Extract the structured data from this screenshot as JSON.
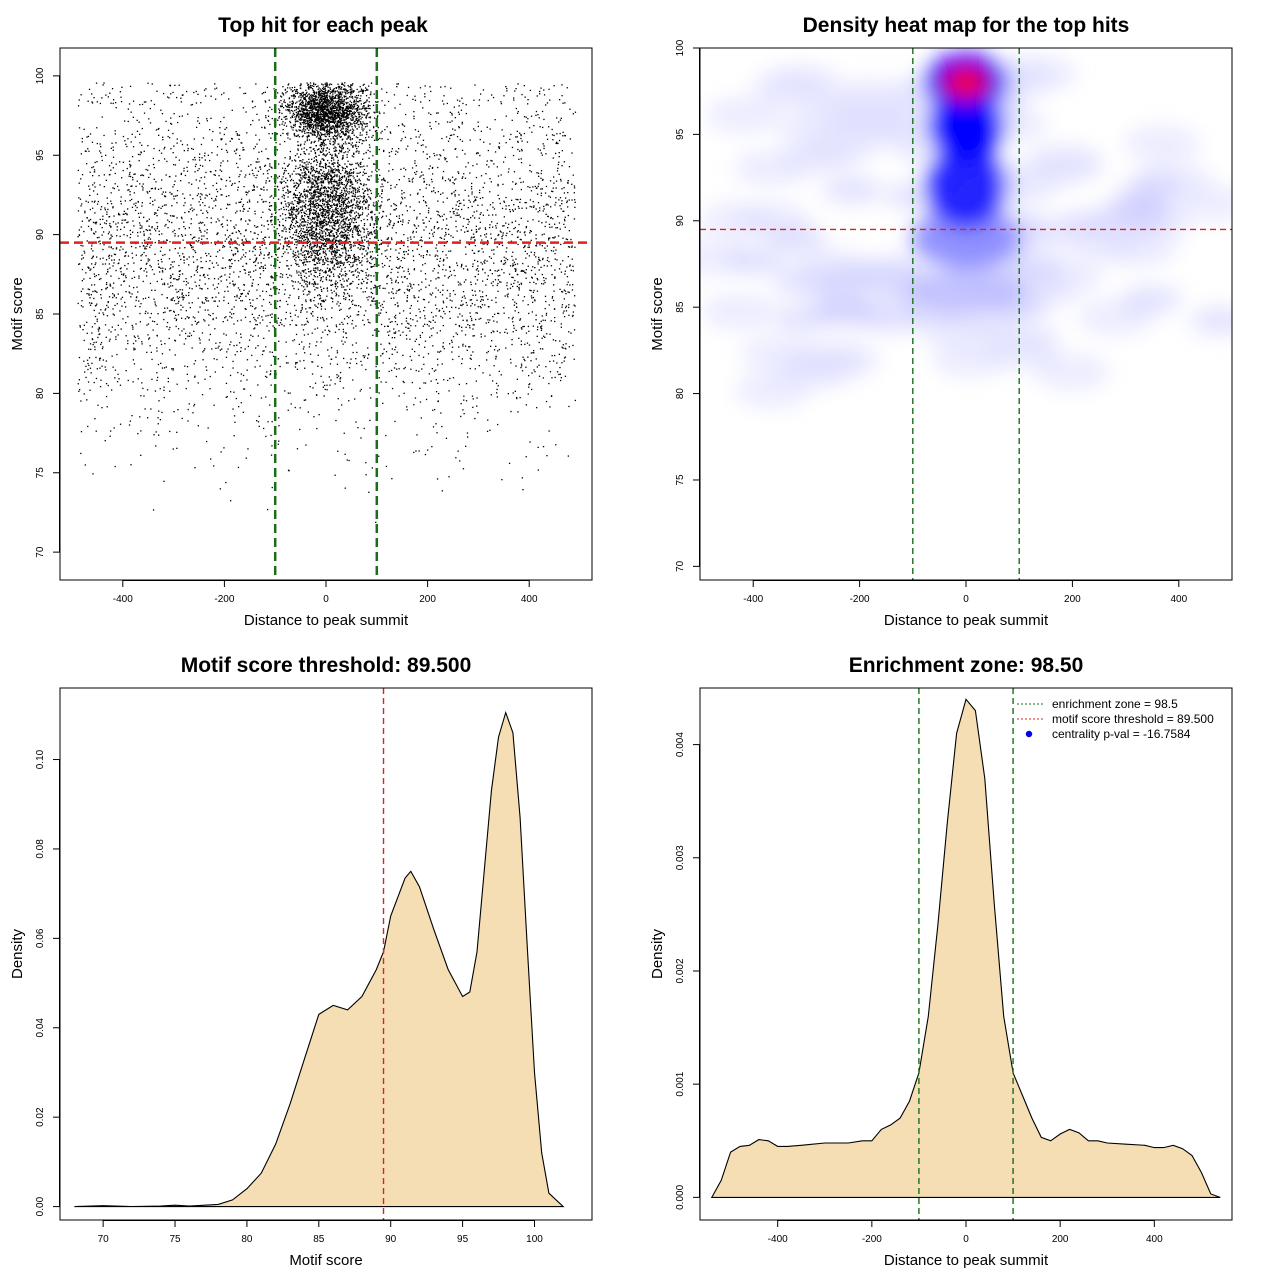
{
  "colors": {
    "enrichment_line": "#1a6e1a",
    "threshold_line": "#dd2222",
    "density_fill": "#f5deb3",
    "heat_low": "#ffffff",
    "heat_mid": "#0000ff",
    "heat_high": "#ff0000",
    "points": "#000000"
  },
  "chart_data": [
    {
      "type": "scatter",
      "title": "Top hit for each peak",
      "xlabel": "Distance to peak summit",
      "ylabel": "Motif score",
      "xlim": [
        -500,
        500
      ],
      "ylim": [
        69,
        101
      ],
      "xticks": [
        -400,
        -200,
        0,
        200,
        400
      ],
      "yticks": [
        70,
        75,
        80,
        85,
        90,
        95,
        100
      ],
      "enrichment_zone_x": [
        -100,
        100
      ],
      "threshold_y": 89.5,
      "n_points_approx": 9000,
      "point_clusters": [
        {
          "name": "background",
          "x_range": [
            -490,
            490
          ],
          "y_center": 89,
          "y_sd": 5.5,
          "share": 0.55
        },
        {
          "name": "central high",
          "x_center": 0,
          "x_sd": 40,
          "y_center": 97.8,
          "y_sd": 0.9,
          "share": 0.2
        },
        {
          "name": "central mid",
          "x_center": 0,
          "x_sd": 45,
          "y_center": 91.5,
          "y_sd": 2.4,
          "share": 0.25
        }
      ]
    },
    {
      "type": "heatmap",
      "title": "Density heat map for the top hits",
      "xlabel": "Distance to peak summit",
      "ylabel": "Motif score",
      "xlim": [
        -500,
        500
      ],
      "ylim": [
        69.5,
        100
      ],
      "xticks": [
        -400,
        -200,
        0,
        200,
        400
      ],
      "yticks": [
        70,
        75,
        80,
        85,
        90,
        95,
        100
      ],
      "enrichment_zone_x": [
        -100,
        100
      ],
      "threshold_y": 89.5,
      "peak_location": {
        "x": 0,
        "y": 98
      }
    },
    {
      "type": "area",
      "title": "Motif score threshold: 89.500",
      "xlabel": "Motif score",
      "ylabel": "Density",
      "xlim": [
        67,
        104
      ],
      "ylim": [
        -0.003,
        0.116
      ],
      "xticks": [
        70,
        75,
        80,
        85,
        90,
        95,
        100
      ],
      "yticks": [
        0.0,
        0.02,
        0.04,
        0.06,
        0.08,
        0.1
      ],
      "ytick_labels": [
        "0.00",
        "0.02",
        "0.04",
        "0.06",
        "0.08",
        "0.10"
      ],
      "threshold_x": 89.5,
      "x": [
        68,
        70,
        72,
        74,
        75,
        76,
        78,
        79,
        80,
        81,
        82,
        83,
        84,
        85,
        86,
        87,
        88,
        89,
        89.5,
        90,
        91,
        91.4,
        92,
        93,
        94,
        95,
        95.5,
        96,
        96.5,
        97,
        97.5,
        98,
        98.5,
        99,
        99.5,
        100,
        100.5,
        101,
        102
      ],
      "y": [
        0,
        0.0002,
        0,
        0.0001,
        0.0003,
        0.0001,
        0.0005,
        0.0015,
        0.004,
        0.0075,
        0.014,
        0.023,
        0.033,
        0.043,
        0.045,
        0.044,
        0.047,
        0.053,
        0.057,
        0.065,
        0.0735,
        0.075,
        0.0715,
        0.062,
        0.053,
        0.047,
        0.048,
        0.057,
        0.075,
        0.093,
        0.105,
        0.1105,
        0.106,
        0.087,
        0.058,
        0.03,
        0.012,
        0.003,
        0
      ]
    },
    {
      "type": "area",
      "title": "Enrichment zone: 98.50",
      "xlabel": "Distance to peak summit",
      "ylabel": "Density",
      "xlim": [
        -565,
        565
      ],
      "ylim": [
        -0.0002,
        0.0045
      ],
      "xticks": [
        -400,
        -200,
        0,
        200,
        400
      ],
      "yticks": [
        0.0,
        0.001,
        0.002,
        0.003,
        0.004
      ],
      "ytick_labels": [
        "0.000",
        "0.001",
        "0.002",
        "0.003",
        "0.004"
      ],
      "enrichment_zone_x": [
        -100,
        100
      ],
      "x": [
        -540,
        -520,
        -500,
        -480,
        -460,
        -440,
        -420,
        -400,
        -380,
        -350,
        -300,
        -250,
        -220,
        -200,
        -180,
        -160,
        -140,
        -120,
        -100,
        -80,
        -60,
        -40,
        -20,
        0,
        20,
        40,
        60,
        80,
        100,
        120,
        140,
        160,
        180,
        200,
        220,
        240,
        260,
        280,
        300,
        340,
        380,
        400,
        420,
        440,
        460,
        480,
        500,
        520,
        540
      ],
      "y": [
        0,
        0.00015,
        0.0004,
        0.00045,
        0.00046,
        0.00051,
        0.0005,
        0.00045,
        0.00045,
        0.00046,
        0.00048,
        0.00048,
        0.0005,
        0.0005,
        0.0006,
        0.00064,
        0.0007,
        0.00085,
        0.0011,
        0.0016,
        0.0024,
        0.0033,
        0.0041,
        0.0044,
        0.0043,
        0.0037,
        0.0026,
        0.0016,
        0.0011,
        0.0009,
        0.0007,
        0.00053,
        0.0005,
        0.00056,
        0.0006,
        0.00057,
        0.0005,
        0.0005,
        0.00048,
        0.00047,
        0.00046,
        0.00044,
        0.00044,
        0.00046,
        0.00043,
        0.00037,
        0.00022,
        3e-05,
        0
      ]
    }
  ],
  "legend": {
    "enrichment": "enrichment zone = 98.5",
    "threshold": "motif score threshold = 89.500",
    "centrality": "centrality p-val = -16.7584"
  }
}
